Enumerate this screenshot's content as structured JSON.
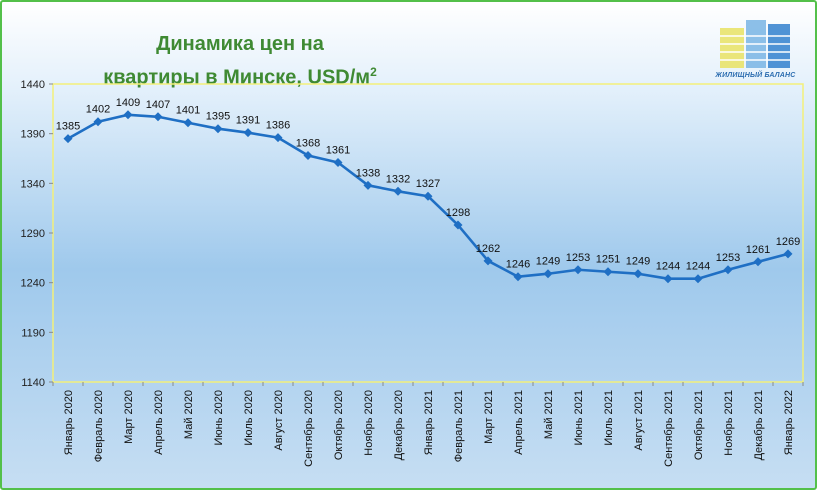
{
  "title_line1": "Динамика цен на",
  "title_line2": "квартиры в Минске, USD/м",
  "title_sup": "2",
  "logo_text": "ЖИЛИЩНЫЙ БАЛАНС",
  "colors": {
    "line": "#1f6fc4",
    "title": "#3f8a33",
    "border": "#53c04a",
    "plot_border": "#f3f07a"
  },
  "chart_data": {
    "type": "line",
    "title": "Динамика цен на квартиры в Минске, USD/м2",
    "ylim": [
      1140,
      1440
    ],
    "yticks": [
      1140,
      1190,
      1240,
      1290,
      1340,
      1390,
      1440
    ],
    "grid": false,
    "categories": [
      "Январь 2020",
      "Февраль 2020",
      "Март 2020",
      "Апрель 2020",
      "Май 2020",
      "Июнь 2020",
      "Июль 2020",
      "Август 2020",
      "Сентябрь 2020",
      "Октябрь 2020",
      "Ноябрь 2020",
      "Декабрь 2020",
      "Январь 2021",
      "Февраль 2021",
      "Март 2021",
      "Апрель 2021",
      "Май 2021",
      "Июнь 2021",
      "Июль 2021",
      "Август 2021",
      "Сентябрь 2021",
      "Октябрь 2021",
      "Ноябрь 2021",
      "Декабрь 2021",
      "Январь 2022"
    ],
    "values": [
      1385,
      1402,
      1409,
      1407,
      1401,
      1395,
      1391,
      1386,
      1368,
      1361,
      1338,
      1332,
      1327,
      1298,
      1262,
      1246,
      1249,
      1253,
      1251,
      1249,
      1244,
      1244,
      1253,
      1261,
      1269
    ]
  }
}
